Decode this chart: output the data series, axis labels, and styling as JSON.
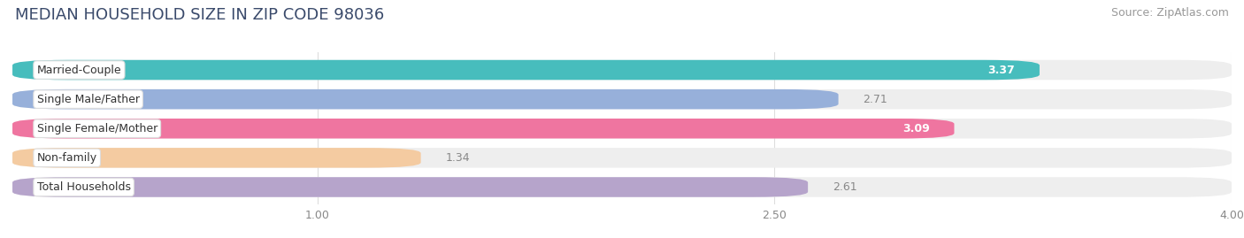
{
  "title": "MEDIAN HOUSEHOLD SIZE IN ZIP CODE 98036",
  "source": "Source: ZipAtlas.com",
  "categories": [
    "Married-Couple",
    "Single Male/Father",
    "Single Female/Mother",
    "Non-family",
    "Total Households"
  ],
  "values": [
    3.37,
    2.71,
    3.09,
    1.34,
    2.61
  ],
  "bar_colors": [
    "#35b8b8",
    "#8eaad8",
    "#f06898",
    "#f5c899",
    "#b09cc8"
  ],
  "xlim": [
    0,
    4.0
  ],
  "xmin": 0,
  "xmax": 4.0,
  "xticks": [
    1.0,
    2.5,
    4.0
  ],
  "background_color": "#ffffff",
  "bar_bg_color": "#eeeeee",
  "title_fontsize": 13,
  "source_fontsize": 9,
  "label_fontsize": 9,
  "value_fontsize": 9,
  "title_color": "#3a4a6b",
  "source_color": "#999999",
  "value_inside_color": "#ffffff",
  "value_outside_color": "#888888"
}
